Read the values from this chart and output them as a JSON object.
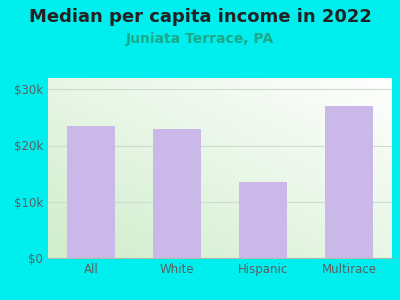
{
  "title": "Median per capita income in 2022",
  "subtitle": "Juniata Terrace, PA",
  "categories": [
    "All",
    "White",
    "Hispanic",
    "Multirace"
  ],
  "values": [
    23500,
    23000,
    13500,
    27000
  ],
  "bar_color": "#c9b8e8",
  "title_fontsize": 13,
  "title_color": "#222222",
  "subtitle_fontsize": 10,
  "subtitle_color": "#1aaa8a",
  "background_color": "#00eeee",
  "tick_color": "#5a6060",
  "ylim": [
    0,
    32000
  ],
  "yticks": [
    0,
    10000,
    20000,
    30000
  ],
  "ytick_labels": [
    "$0",
    "$10k",
    "$20k",
    "$30k"
  ],
  "grid_color": "#ccddcc",
  "bottom_color": "#c8e8c0",
  "top_color": "#f8fff8"
}
